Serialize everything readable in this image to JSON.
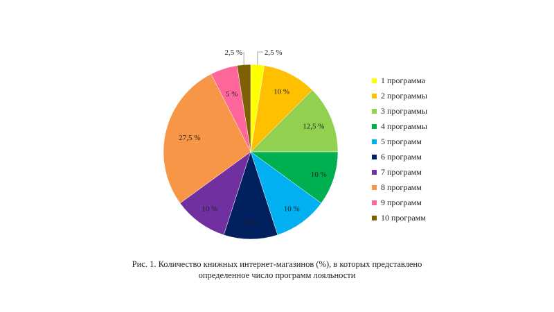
{
  "chart_data": {
    "type": "pie",
    "categories": [
      "1 программа",
      "2 программы",
      "3 программы",
      "4 программы",
      "5 программ",
      "6 программ",
      "7 программ",
      "8 программ",
      "9 программ",
      "10 программ"
    ],
    "values": [
      2.5,
      10,
      12.5,
      10,
      10,
      10,
      10,
      27.5,
      5,
      2.5
    ],
    "data_labels": [
      "2,5 %",
      "10 %",
      "12,5 %",
      "10 %",
      "10 %",
      "10 %",
      "10 %",
      "27,5 %",
      "5 %",
      "2,5 %"
    ],
    "colors": [
      "#FFFF00",
      "#FFC000",
      "#92D050",
      "#00B050",
      "#00B0F0",
      "#002060",
      "#7030A0",
      "#F79646",
      "#FF6699",
      "#7F6000"
    ],
    "legend_position": "right"
  },
  "caption": {
    "line1": "Рис. 1. Количество книжных интернет-магазинов (%), в которых представлено",
    "line2": "определенное число программ лояльности"
  }
}
